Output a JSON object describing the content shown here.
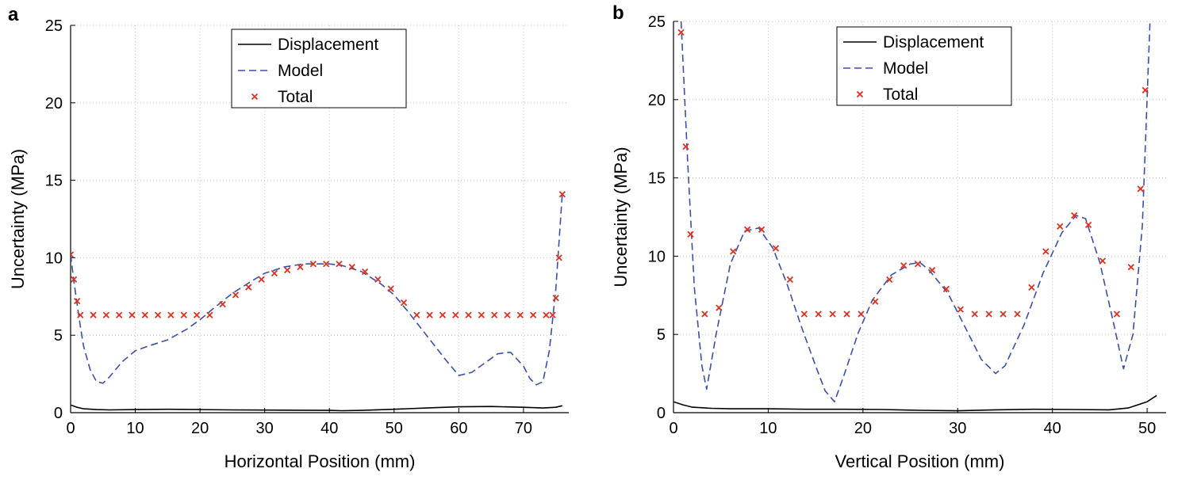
{
  "chart_data": [
    {
      "type": "line",
      "panel": "a",
      "xlabel": "Horizontal Position (mm)",
      "ylabel": "Uncertainty (MPa)",
      "xlim": [
        0,
        77
      ],
      "ylim": [
        0,
        25
      ],
      "xticks": [
        0,
        10,
        20,
        30,
        40,
        50,
        60,
        70
      ],
      "yticks": [
        0,
        5,
        10,
        15,
        20,
        25
      ],
      "grid": true,
      "legend_position": "top-center",
      "series": [
        {
          "name": "Displacement",
          "style": "solid",
          "color": "#000000",
          "x": [
            0,
            1,
            2,
            4,
            6,
            10,
            15,
            20,
            25,
            30,
            35,
            40,
            42,
            45,
            50,
            55,
            60,
            65,
            70,
            73,
            75,
            76
          ],
          "y": [
            0.5,
            0.35,
            0.25,
            0.2,
            0.18,
            0.2,
            0.22,
            0.2,
            0.18,
            0.17,
            0.16,
            0.15,
            0.13,
            0.15,
            0.22,
            0.3,
            0.38,
            0.4,
            0.35,
            0.3,
            0.35,
            0.45
          ]
        },
        {
          "name": "Model",
          "style": "dashed",
          "color": "#3b4fa8",
          "x": [
            0,
            0.5,
            1,
            1.5,
            2,
            3,
            4,
            5,
            6,
            8,
            10,
            12,
            15,
            18,
            20,
            22,
            25,
            28,
            30,
            33,
            36,
            38,
            40,
            42,
            45,
            48,
            50,
            52,
            55,
            58,
            60,
            62,
            64,
            66,
            68,
            70,
            71,
            72,
            73,
            74,
            75,
            76
          ],
          "y": [
            10.2,
            8.5,
            7.0,
            5.6,
            4.3,
            2.8,
            2.0,
            1.9,
            2.3,
            3.3,
            4.0,
            4.3,
            4.7,
            5.4,
            6.0,
            6.7,
            7.7,
            8.5,
            9.0,
            9.4,
            9.6,
            9.6,
            9.6,
            9.5,
            9.1,
            8.3,
            7.6,
            6.6,
            5.0,
            3.4,
            2.4,
            2.6,
            3.2,
            3.8,
            3.9,
            3.0,
            2.2,
            1.8,
            2.0,
            4.0,
            8.0,
            14.1
          ]
        },
        {
          "name": "Total",
          "style": "markers-x",
          "color": "#e03020",
          "x": [
            0,
            0.5,
            1,
            1.5,
            3.5,
            5.5,
            7.5,
            9.5,
            11.5,
            13.5,
            15.5,
            17.5,
            19.5,
            21.5,
            23.5,
            25.5,
            27.5,
            29.5,
            31.5,
            33.5,
            35.5,
            37.5,
            39.5,
            41.5,
            43.5,
            45.5,
            47.5,
            49.5,
            51.5,
            53.5,
            55.5,
            57.5,
            59.5,
            61.5,
            63.5,
            65.5,
            67.5,
            69.5,
            71.5,
            73.5,
            74.5,
            75,
            75.5,
            76
          ],
          "y": [
            10.2,
            8.6,
            7.2,
            6.3,
            6.3,
            6.3,
            6.3,
            6.3,
            6.3,
            6.3,
            6.3,
            6.3,
            6.3,
            6.3,
            7.0,
            7.6,
            8.1,
            8.6,
            9.0,
            9.2,
            9.4,
            9.6,
            9.6,
            9.6,
            9.4,
            9.1,
            8.6,
            8.0,
            7.1,
            6.3,
            6.3,
            6.3,
            6.3,
            6.3,
            6.3,
            6.3,
            6.3,
            6.3,
            6.3,
            6.3,
            6.3,
            7.4,
            10.0,
            14.1
          ]
        }
      ]
    },
    {
      "type": "line",
      "panel": "b",
      "xlabel": "Vertical Position (mm)",
      "ylabel": "Uncertainty (MPa)",
      "xlim": [
        0,
        52
      ],
      "ylim": [
        0,
        25
      ],
      "xticks": [
        0,
        10,
        20,
        30,
        40,
        50
      ],
      "yticks": [
        0,
        5,
        10,
        15,
        20,
        25
      ],
      "grid": true,
      "legend_position": "top-center",
      "series": [
        {
          "name": "Displacement",
          "style": "solid",
          "color": "#000000",
          "x": [
            0,
            1,
            2,
            4,
            6,
            10,
            14,
            18,
            22,
            26,
            30,
            34,
            38,
            42,
            46,
            48,
            50,
            51
          ],
          "y": [
            0.7,
            0.5,
            0.35,
            0.28,
            0.25,
            0.25,
            0.22,
            0.22,
            0.2,
            0.15,
            0.12,
            0.18,
            0.22,
            0.2,
            0.18,
            0.3,
            0.7,
            1.1
          ]
        },
        {
          "name": "Model",
          "style": "dashed",
          "color": "#3b4fa8",
          "x": [
            0.8,
            1.5,
            2.2,
            3,
            3.5,
            4.5,
            6,
            7.5,
            9,
            10.5,
            12,
            13.5,
            15,
            16,
            17,
            18,
            19.5,
            21,
            23,
            25,
            26,
            27,
            29,
            31,
            32.5,
            34,
            35,
            37,
            39,
            41,
            42.5,
            43.5,
            45,
            46.5,
            47.5,
            48.5,
            49.5,
            50.3
          ],
          "y": [
            25,
            16,
            8,
            3,
            1.5,
            5,
            9.5,
            11.6,
            11.8,
            10.5,
            8.2,
            5.5,
            3,
            1.4,
            0.7,
            2.4,
            5.1,
            7.2,
            8.8,
            9.5,
            9.6,
            9.1,
            7.6,
            5.2,
            3.4,
            2.5,
            3.0,
            5.6,
            8.9,
            11.5,
            12.6,
            12.4,
            9.6,
            5.6,
            2.8,
            5.0,
            12.0,
            25
          ]
        },
        {
          "name": "Total",
          "style": "markers-x",
          "color": "#e03020",
          "x": [
            0.8,
            1.3,
            1.8,
            3.3,
            4.8,
            6.3,
            7.8,
            9.3,
            10.8,
            12.3,
            13.8,
            15.3,
            16.8,
            18.3,
            19.8,
            21.3,
            22.8,
            24.3,
            25.8,
            27.3,
            28.8,
            30.3,
            31.8,
            33.3,
            34.8,
            36.3,
            37.8,
            39.3,
            40.8,
            42.3,
            43.8,
            45.3,
            46.8,
            48.3,
            49.3,
            49.8
          ],
          "y": [
            24.3,
            17.0,
            11.4,
            6.3,
            6.7,
            10.3,
            11.7,
            11.7,
            10.5,
            8.5,
            6.3,
            6.3,
            6.3,
            6.3,
            6.3,
            7.1,
            8.5,
            9.4,
            9.5,
            9.1,
            7.9,
            6.6,
            6.3,
            6.3,
            6.3,
            6.3,
            8.0,
            10.3,
            11.9,
            12.6,
            12.0,
            9.7,
            6.3,
            9.3,
            14.3,
            20.6
          ]
        }
      ]
    }
  ]
}
